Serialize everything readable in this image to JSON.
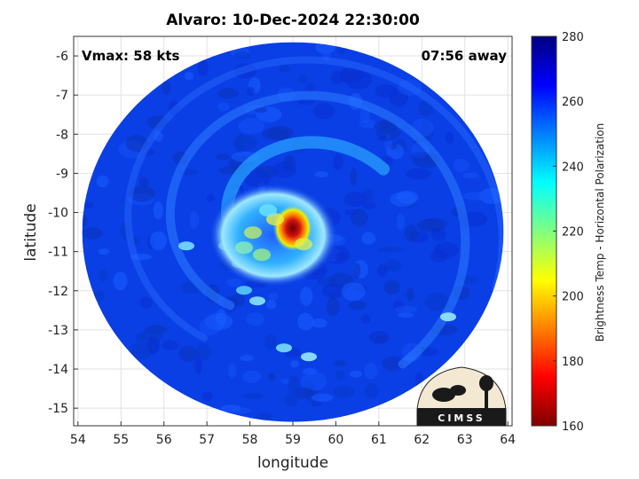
{
  "chart_data": {
    "type": "heatmap",
    "title": "Alvaro: 10-Dec-2024 22:30:00",
    "xlabel": "longitude",
    "ylabel": "latitude",
    "xlim": [
      53.9,
      64.1
    ],
    "ylim": [
      -15.45,
      -5.5
    ],
    "x_ticks": [
      54,
      55,
      56,
      57,
      58,
      59,
      60,
      61,
      62,
      63,
      64
    ],
    "y_ticks": [
      -6,
      -7,
      -8,
      -9,
      -10,
      -11,
      -12,
      -13,
      -14,
      -15
    ],
    "grid": true,
    "colorbar": {
      "label": "Brightness Temp - Horizontal Polarization",
      "min": 160,
      "max": 280,
      "ticks": [
        160,
        180,
        200,
        220,
        240,
        260,
        280
      ],
      "colormap": "jet"
    },
    "storm_center": {
      "lon": 59.0,
      "lat": -10.4
    },
    "swath": {
      "center_lon": 59.0,
      "center_lat": -10.5,
      "radius_deg_lon": 4.9,
      "radius_deg_lat": 4.85
    }
  },
  "annotations": {
    "vmax": "Vmax: 58 kts",
    "time_away": "07:56 away"
  },
  "logo": {
    "text": "CIMSS"
  },
  "colors": {
    "background_field": "#0a3fe6",
    "cold_core": "#8b0000"
  }
}
